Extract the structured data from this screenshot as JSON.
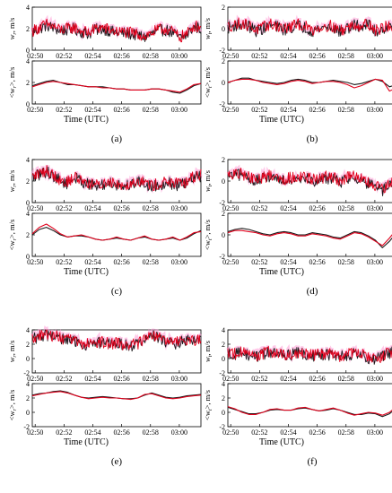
{
  "figure": {
    "panels": [
      {
        "id": "a",
        "label": "(a)",
        "top_ylabel_main": "w",
        "top_ylabel_sub": "r",
        "top_ylabel_unit": ", m/s",
        "bottom_ylabel": "<w",
        "bottom_ylabel_sub": "r",
        "bottom_ylabel_tail": ">, m/s",
        "xlabel": "Time (UTC)"
      },
      {
        "id": "b",
        "label": "(b)",
        "top_ylabel_main": "w",
        "top_ylabel_sub": "t",
        "top_ylabel_unit": ", m/s",
        "bottom_ylabel": "<w",
        "bottom_ylabel_sub": "t",
        "bottom_ylabel_tail": ">, m/s",
        "xlabel": "Time (UTC)"
      },
      {
        "id": "c",
        "label": "(c)",
        "top_ylabel_main": "w",
        "top_ylabel_sub": "r",
        "top_ylabel_unit": ", m/s",
        "bottom_ylabel": "<w",
        "bottom_ylabel_sub": "r",
        "bottom_ylabel_tail": ">, m/s",
        "xlabel": "Time (UTC)"
      },
      {
        "id": "d",
        "label": "(d)",
        "top_ylabel_main": "w",
        "top_ylabel_sub": "t",
        "top_ylabel_unit": ", m/s",
        "bottom_ylabel": "<w",
        "bottom_ylabel_sub": "t",
        "bottom_ylabel_tail": ">, m/s",
        "xlabel": "Time (UTC)"
      },
      {
        "id": "e",
        "label": "(e)",
        "top_ylabel_main": "w",
        "top_ylabel_sub": "r",
        "top_ylabel_unit": ", m/s",
        "bottom_ylabel": "<w",
        "bottom_ylabel_sub": "r",
        "bottom_ylabel_tail": ">, m/s",
        "xlabel": "Time (UTC)"
      },
      {
        "id": "f",
        "label": "(f)",
        "top_ylabel_main": "w",
        "top_ylabel_sub": "t",
        "top_ylabel_unit": ", m/s",
        "bottom_ylabel": "<w",
        "bottom_ylabel_sub": "t",
        "bottom_ylabel_tail": ">, m/s",
        "xlabel": "Time (UTC)"
      }
    ]
  },
  "colors": {
    "series_black": "#1a1a1a",
    "series_red": "#e0001b",
    "band_pink": "#ff9ad5",
    "axis": "#000000"
  },
  "chart_data": [
    {
      "type": "line",
      "panel": "a",
      "subplot": "top",
      "x_ticks": [
        "02:50",
        "02:52",
        "02:54",
        "02:56",
        "02:58",
        "03:00"
      ],
      "xlim": [
        0,
        11.7
      ],
      "ylim": [
        0,
        4
      ],
      "y_ticks": [
        0,
        2,
        4
      ],
      "series": [
        {
          "values": [
            1.7,
            2.0,
            2.3,
            2.1,
            1.8,
            1.9,
            2.0,
            1.7,
            1.5,
            1.9,
            2.0,
            1.8,
            1.6,
            1.6,
            1.5,
            1.4,
            1.2,
            1.5,
            1.8,
            1.9,
            1.6,
            1.1,
            1.4,
            2.2,
            2.0
          ]
        },
        {
          "values": [
            1.8,
            2.1,
            2.4,
            2.2,
            1.9,
            2.0,
            2.1,
            1.8,
            1.6,
            2.0,
            2.1,
            1.9,
            1.7,
            1.7,
            1.6,
            1.5,
            1.3,
            1.6,
            1.9,
            2.0,
            1.7,
            1.2,
            1.5,
            2.3,
            2.1
          ]
        }
      ]
    },
    {
      "type": "line",
      "panel": "a",
      "subplot": "bottom",
      "x_ticks": [
        "02:50",
        "02:52",
        "02:54",
        "02:56",
        "02:58",
        "03:00"
      ],
      "xlim": [
        0,
        11.7
      ],
      "ylim": [
        0,
        4
      ],
      "y_ticks": [
        0,
        2,
        4
      ],
      "series": [
        {
          "values": [
            1.7,
            1.9,
            2.1,
            2.2,
            2.0,
            1.8,
            1.8,
            1.7,
            1.6,
            1.6,
            1.6,
            1.5,
            1.4,
            1.4,
            1.3,
            1.3,
            1.3,
            1.4,
            1.4,
            1.3,
            1.1,
            1.0,
            1.3,
            1.7,
            1.9
          ]
        },
        {
          "values": [
            1.6,
            1.8,
            2.0,
            2.1,
            2.0,
            1.9,
            1.8,
            1.7,
            1.6,
            1.6,
            1.5,
            1.5,
            1.4,
            1.4,
            1.3,
            1.3,
            1.3,
            1.4,
            1.4,
            1.3,
            1.2,
            1.1,
            1.4,
            1.8,
            1.9
          ]
        }
      ]
    },
    {
      "type": "line",
      "panel": "b",
      "subplot": "top",
      "x_ticks": [
        "02:50",
        "02:52",
        "02:54",
        "02:56",
        "02:58",
        "03:00"
      ],
      "xlim": [
        0,
        11.7
      ],
      "ylim": [
        -2,
        2
      ],
      "y_ticks": [
        -2,
        0,
        2
      ],
      "series": [
        {
          "values": [
            0.1,
            0.3,
            0.4,
            0.2,
            -0.2,
            0.0,
            0.3,
            0.2,
            -0.1,
            0.1,
            0.3,
            0.1,
            -0.2,
            0.0,
            0.2,
            0.1,
            -0.3,
            0.0,
            0.3,
            0.2,
            0.4,
            -0.3,
            0.0,
            0.2,
            -0.5
          ]
        },
        {
          "values": [
            0.2,
            0.4,
            0.5,
            0.3,
            -0.1,
            0.1,
            0.4,
            0.3,
            0.0,
            0.2,
            0.4,
            0.2,
            -0.1,
            0.1,
            0.3,
            0.2,
            -0.2,
            0.1,
            0.4,
            0.3,
            0.5,
            -0.2,
            0.1,
            0.3,
            -0.4
          ]
        }
      ]
    },
    {
      "type": "line",
      "panel": "b",
      "subplot": "bottom",
      "x_ticks": [
        "02:50",
        "02:52",
        "02:54",
        "02:56",
        "02:58",
        "03:00"
      ],
      "xlim": [
        0,
        11.7
      ],
      "ylim": [
        -2,
        2
      ],
      "y_ticks": [
        -2,
        0,
        2
      ],
      "series": [
        {
          "values": [
            0.0,
            0.2,
            0.4,
            0.4,
            0.2,
            0.1,
            0.0,
            -0.1,
            0.0,
            0.2,
            0.3,
            0.2,
            0.0,
            0.0,
            0.1,
            0.2,
            0.1,
            0.0,
            -0.2,
            -0.1,
            0.1,
            0.3,
            0.1,
            -0.4,
            -0.2
          ]
        },
        {
          "values": [
            0.0,
            0.2,
            0.3,
            0.3,
            0.2,
            0.0,
            -0.1,
            -0.2,
            -0.1,
            0.1,
            0.2,
            0.1,
            -0.1,
            0.0,
            0.1,
            0.1,
            0.0,
            -0.2,
            -0.5,
            -0.3,
            0.0,
            0.3,
            0.2,
            -0.8,
            -0.5
          ]
        }
      ]
    },
    {
      "type": "line",
      "panel": "c",
      "subplot": "top",
      "x_ticks": [
        "02:50",
        "02:52",
        "02:54",
        "02:56",
        "02:58",
        "03:00"
      ],
      "xlim": [
        0,
        11.7
      ],
      "ylim": [
        0,
        4
      ],
      "y_ticks": [
        0,
        2,
        4
      ],
      "series": [
        {
          "values": [
            2.3,
            2.6,
            2.9,
            2.5,
            2.0,
            1.8,
            2.3,
            2.0,
            1.7,
            1.5,
            1.6,
            1.9,
            1.7,
            1.5,
            1.7,
            2.0,
            1.8,
            1.5,
            1.6,
            1.9,
            1.7,
            1.6,
            1.8,
            2.3,
            2.5
          ]
        },
        {
          "values": [
            2.4,
            2.7,
            3.0,
            2.6,
            2.1,
            1.9,
            2.4,
            2.1,
            1.8,
            1.6,
            1.7,
            2.0,
            1.8,
            1.6,
            1.8,
            2.1,
            1.9,
            1.6,
            1.7,
            2.0,
            1.8,
            1.7,
            1.9,
            2.4,
            2.6
          ]
        }
      ]
    },
    {
      "type": "line",
      "panel": "c",
      "subplot": "bottom",
      "x_ticks": [
        "02:50",
        "02:52",
        "02:54",
        "02:56",
        "02:58",
        "03:00"
      ],
      "xlim": [
        0,
        11.7
      ],
      "ylim": [
        0,
        4
      ],
      "y_ticks": [
        0,
        2,
        4
      ],
      "series": [
        {
          "values": [
            2.0,
            2.5,
            2.7,
            2.4,
            2.0,
            1.8,
            1.9,
            1.9,
            1.8,
            1.6,
            1.5,
            1.6,
            1.7,
            1.6,
            1.5,
            1.7,
            1.8,
            1.6,
            1.5,
            1.6,
            1.7,
            1.5,
            1.7,
            2.1,
            2.4
          ]
        },
        {
          "values": [
            2.1,
            2.7,
            3.0,
            2.6,
            2.1,
            1.8,
            1.9,
            2.0,
            1.8,
            1.6,
            1.5,
            1.6,
            1.8,
            1.6,
            1.5,
            1.7,
            1.9,
            1.6,
            1.5,
            1.6,
            1.8,
            1.5,
            1.8,
            2.2,
            2.3
          ]
        }
      ]
    },
    {
      "type": "line",
      "panel": "d",
      "subplot": "top",
      "x_ticks": [
        "02:50",
        "02:52",
        "02:54",
        "02:56",
        "02:58",
        "03:00"
      ],
      "xlim": [
        0,
        11.7
      ],
      "ylim": [
        -2,
        2
      ],
      "y_ticks": [
        -2,
        0,
        2
      ],
      "series": [
        {
          "values": [
            0.4,
            0.5,
            0.6,
            0.3,
            0.0,
            0.2,
            0.5,
            0.3,
            0.1,
            0.2,
            0.4,
            0.3,
            0.0,
            0.1,
            0.3,
            0.2,
            -0.1,
            0.2,
            0.4,
            0.1,
            -0.3,
            -0.6,
            -0.9,
            -0.4,
            -0.1
          ]
        },
        {
          "values": [
            0.5,
            0.6,
            0.7,
            0.4,
            0.1,
            0.3,
            0.6,
            0.4,
            0.2,
            0.3,
            0.5,
            0.4,
            0.1,
            0.2,
            0.4,
            0.3,
            0.0,
            0.3,
            0.5,
            0.2,
            -0.2,
            -0.5,
            -0.8,
            -0.3,
            0.0
          ]
        }
      ]
    },
    {
      "type": "line",
      "panel": "d",
      "subplot": "bottom",
      "x_ticks": [
        "02:50",
        "02:52",
        "02:54",
        "02:56",
        "02:58",
        "03:00"
      ],
      "xlim": [
        0,
        11.7
      ],
      "ylim": [
        -2,
        2
      ],
      "y_ticks": [
        -2,
        0,
        2
      ],
      "series": [
        {
          "values": [
            0.3,
            0.5,
            0.6,
            0.5,
            0.3,
            0.1,
            0.0,
            0.2,
            0.3,
            0.2,
            0.0,
            0.0,
            0.2,
            0.1,
            0.0,
            -0.2,
            -0.3,
            0.0,
            0.3,
            0.2,
            -0.1,
            -0.5,
            -1.2,
            -0.6,
            0.2
          ]
        },
        {
          "values": [
            0.2,
            0.4,
            0.4,
            0.3,
            0.2,
            0.0,
            -0.1,
            0.1,
            0.2,
            0.1,
            -0.1,
            -0.1,
            0.1,
            0.0,
            -0.1,
            -0.3,
            -0.4,
            -0.1,
            0.2,
            0.1,
            -0.2,
            -0.6,
            -1.0,
            -0.3,
            0.5
          ]
        }
      ]
    },
    {
      "type": "line",
      "panel": "e",
      "subplot": "top",
      "x_ticks": [
        "02:50",
        "02:52",
        "02:54",
        "02:56",
        "02:58",
        "03:00"
      ],
      "xlim": [
        0,
        11.7
      ],
      "ylim": [
        -2,
        4
      ],
      "y_ticks": [
        -2,
        0,
        2,
        4
      ],
      "series": [
        {
          "values": [
            2.8,
            3.0,
            3.3,
            3.1,
            2.8,
            2.5,
            2.4,
            2.0,
            1.9,
            2.1,
            2.2,
            2.0,
            2.1,
            1.9,
            1.8,
            2.0,
            2.6,
            3.2,
            2.8,
            2.4,
            2.0,
            2.2,
            2.6,
            2.4,
            2.6
          ]
        },
        {
          "values": [
            2.9,
            3.1,
            3.4,
            3.2,
            2.9,
            2.6,
            2.5,
            2.1,
            2.0,
            2.2,
            2.3,
            2.1,
            2.2,
            2.0,
            1.9,
            2.1,
            2.7,
            3.3,
            2.9,
            2.5,
            2.1,
            2.3,
            2.7,
            2.5,
            2.7
          ]
        }
      ]
    },
    {
      "type": "line",
      "panel": "e",
      "subplot": "bottom",
      "x_ticks": [
        "02:50",
        "02:52",
        "02:54",
        "02:56",
        "02:58",
        "03:00"
      ],
      "xlim": [
        0,
        11.7
      ],
      "ylim": [
        -2,
        4
      ],
      "y_ticks": [
        -2,
        0,
        2,
        4
      ],
      "series": [
        {
          "values": [
            2.4,
            2.6,
            2.7,
            2.9,
            3.0,
            2.8,
            2.4,
            2.1,
            2.0,
            2.1,
            2.2,
            2.1,
            2.0,
            1.9,
            1.9,
            2.0,
            2.4,
            2.7,
            2.4,
            2.1,
            2.0,
            2.1,
            2.3,
            2.4,
            2.5
          ]
        },
        {
          "values": [
            2.3,
            2.5,
            2.7,
            2.8,
            2.9,
            2.7,
            2.4,
            2.1,
            1.9,
            2.0,
            2.1,
            2.0,
            2.0,
            1.9,
            1.8,
            2.0,
            2.5,
            2.6,
            2.3,
            2.0,
            1.9,
            2.0,
            2.2,
            2.3,
            2.4
          ]
        }
      ]
    },
    {
      "type": "line",
      "panel": "f",
      "subplot": "top",
      "x_ticks": [
        "02:50",
        "02:52",
        "02:54",
        "02:56",
        "02:58",
        "03:00"
      ],
      "xlim": [
        0,
        11.7
      ],
      "ylim": [
        -2,
        4
      ],
      "y_ticks": [
        -2,
        0,
        2,
        4
      ],
      "series": [
        {
          "values": [
            0.8,
            0.6,
            0.9,
            0.4,
            0.2,
            0.6,
            0.9,
            0.7,
            0.3,
            0.5,
            0.8,
            0.6,
            0.3,
            0.5,
            0.6,
            0.4,
            0.2,
            0.5,
            0.7,
            0.5,
            0.1,
            -0.2,
            0.3,
            0.8,
            1.0
          ]
        },
        {
          "values": [
            0.9,
            0.7,
            1.0,
            0.5,
            0.3,
            0.7,
            1.0,
            0.8,
            0.4,
            0.6,
            0.9,
            0.7,
            0.4,
            0.6,
            0.7,
            0.5,
            0.3,
            0.6,
            0.8,
            0.6,
            0.2,
            -0.1,
            0.4,
            0.9,
            1.1
          ]
        }
      ]
    },
    {
      "type": "line",
      "panel": "f",
      "subplot": "bottom",
      "x_ticks": [
        "02:50",
        "02:52",
        "02:54",
        "02:56",
        "02:58",
        "03:00"
      ],
      "xlim": [
        0,
        11.7
      ],
      "ylim": [
        -2,
        4
      ],
      "y_ticks": [
        -2,
        0,
        2,
        4
      ],
      "series": [
        {
          "values": [
            0.7,
            0.4,
            0.1,
            -0.2,
            -0.2,
            0.0,
            0.3,
            0.4,
            0.3,
            0.3,
            0.5,
            0.6,
            0.4,
            0.2,
            0.3,
            0.5,
            0.3,
            0.0,
            -0.3,
            -0.3,
            -0.1,
            -0.2,
            -0.6,
            -0.2,
            0.6
          ]
        },
        {
          "values": [
            0.8,
            0.5,
            0.0,
            -0.3,
            -0.3,
            0.0,
            0.4,
            0.5,
            0.3,
            0.3,
            0.6,
            0.7,
            0.4,
            0.2,
            0.4,
            0.6,
            0.3,
            -0.1,
            -0.4,
            -0.2,
            0.0,
            -0.1,
            -0.4,
            0.0,
            0.8
          ]
        }
      ]
    }
  ]
}
